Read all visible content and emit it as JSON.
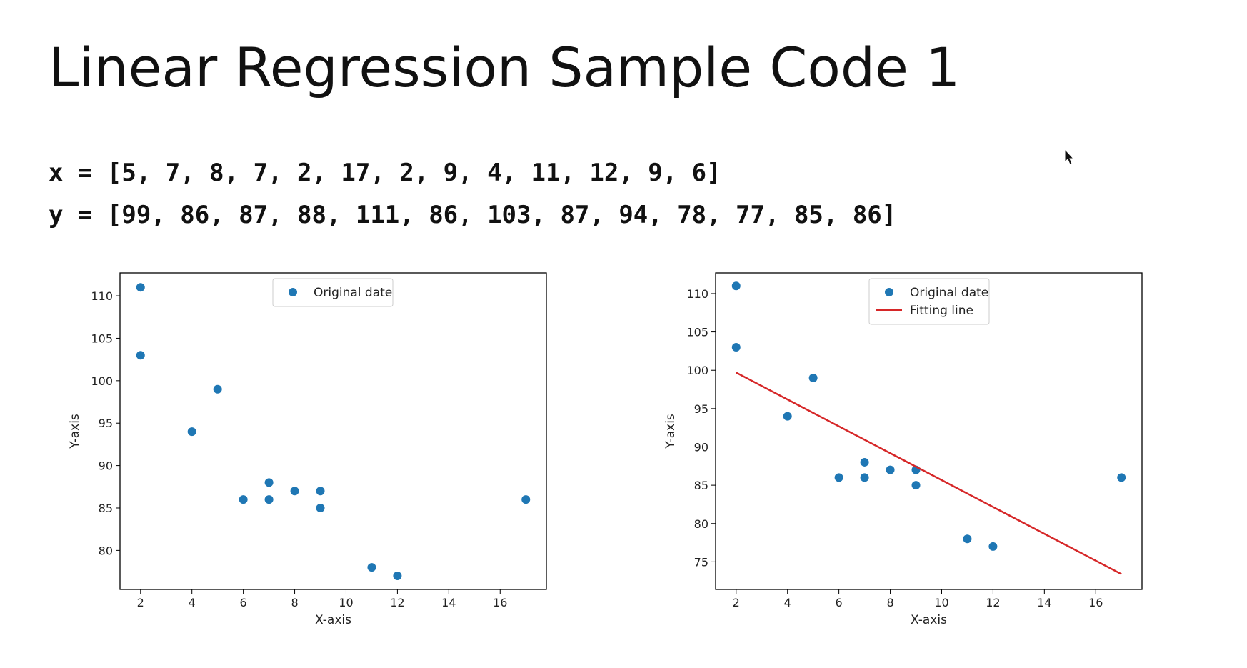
{
  "slide": {
    "title": "Linear Regression Sample Code 1",
    "code_x": "x = [5, 7, 8, 7, 2, 17, 2, 9, 4, 11, 12, 9, 6]",
    "code_y": "y = [99, 86, 87, 88, 111, 86, 103, 87, 94, 78, 77, 85, 86]",
    "cursor_icon": "mouse-pointer-icon"
  },
  "chart_data": [
    {
      "type": "scatter",
      "title": "",
      "xlabel": "X-axis",
      "ylabel": "Y-axis",
      "xlim": [
        1.2,
        17.8
      ],
      "ylim": [
        75.4,
        112.7
      ],
      "xticks": [
        2,
        4,
        6,
        8,
        10,
        12,
        14,
        16
      ],
      "yticks": [
        80,
        85,
        90,
        95,
        100,
        105,
        110
      ],
      "grid": false,
      "legend_position": "top-center",
      "series": [
        {
          "name": "Original date",
          "type": "scatter",
          "color": "#1f77b4",
          "x": [
            5,
            7,
            8,
            7,
            2,
            17,
            2,
            9,
            4,
            11,
            12,
            9,
            6
          ],
          "y": [
            99,
            86,
            87,
            88,
            111,
            86,
            103,
            87,
            94,
            78,
            77,
            85,
            86
          ]
        }
      ]
    },
    {
      "type": "scatter",
      "title": "",
      "xlabel": "X-axis",
      "ylabel": "Y-axis",
      "xlim": [
        1.2,
        17.8
      ],
      "ylim": [
        71.4,
        112.7
      ],
      "xticks": [
        2,
        4,
        6,
        8,
        10,
        12,
        14,
        16
      ],
      "yticks": [
        75,
        80,
        85,
        90,
        95,
        100,
        105,
        110
      ],
      "grid": false,
      "legend_position": "top-center",
      "series": [
        {
          "name": "Original date",
          "type": "scatter",
          "color": "#1f77b4",
          "x": [
            5,
            7,
            8,
            7,
            2,
            17,
            2,
            9,
            4,
            11,
            12,
            9,
            6
          ],
          "y": [
            99,
            86,
            87,
            88,
            111,
            86,
            103,
            87,
            94,
            78,
            77,
            85,
            86
          ]
        },
        {
          "name": "Fitting line",
          "type": "line",
          "color": "#d62728",
          "x": [
            2,
            17
          ],
          "y": [
            99.7,
            73.4
          ]
        }
      ]
    }
  ]
}
